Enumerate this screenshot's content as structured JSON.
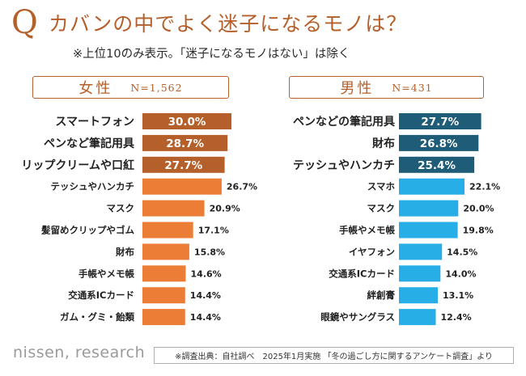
{
  "header": {
    "q_letter": "Q",
    "title": "カバンの中でよく迷子になるモノは？",
    "subtitle": "※上位10のみ表示。「迷子になるモノはない」は除く"
  },
  "female": {
    "label": "女性",
    "n": "N=1,562"
  },
  "male": {
    "label": "男性",
    "n": "N=431"
  },
  "footer": {
    "logo": "nissen, research",
    "source": "※調査出典：自社調べ　2025年1月実施 「冬の過ごし方に関するアンケート調査」より"
  },
  "colors": {
    "accent": "#b5602b",
    "female_top": "#b5602b",
    "female_rest": "#ec7d37",
    "male_top": "#1f5c78",
    "male_rest": "#27aee6"
  },
  "chart_data": [
    {
      "type": "bar",
      "orientation": "horizontal",
      "group": "女性",
      "sample": "N=1,562",
      "categories": [
        "スマートフォン",
        "ペンなど筆記用具",
        "リップクリームや口紅",
        "テッシュやハンカチ",
        "マスク",
        "髪留めクリップやゴム",
        "財布",
        "手帳やメモ帳",
        "交通系ICカード",
        "ガム・グミ・飴類"
      ],
      "values": [
        30.0,
        28.7,
        27.7,
        26.7,
        20.9,
        17.1,
        15.8,
        14.6,
        14.4,
        14.4
      ],
      "labels": [
        "30.0%",
        "28.7%",
        "27.7%",
        "26.7%",
        "20.9%",
        "17.1%",
        "15.8%",
        "14.6%",
        "14.4%",
        "14.4%"
      ],
      "unit": "%",
      "highlight_top": 3,
      "xlim": [
        0,
        30
      ]
    },
    {
      "type": "bar",
      "orientation": "horizontal",
      "group": "男性",
      "sample": "N=431",
      "categories": [
        "ペンなどの筆記用具",
        "財布",
        "テッシュやハンカチ",
        "スマホ",
        "マスク",
        "手帳やメモ帳",
        "イヤフォン",
        "交通系ICカード",
        "絆創膏",
        "眼鏡やサングラス"
      ],
      "values": [
        27.7,
        26.8,
        25.4,
        22.1,
        20.0,
        19.8,
        14.5,
        14.0,
        13.1,
        12.4
      ],
      "labels": [
        "27.7%",
        "26.8%",
        "25.4%",
        "22.1%",
        "20.0%",
        "19.8%",
        "14.5%",
        "14.0%",
        "13.1%",
        "12.4%"
      ],
      "unit": "%",
      "highlight_top": 3,
      "xlim": [
        0,
        30
      ]
    }
  ]
}
